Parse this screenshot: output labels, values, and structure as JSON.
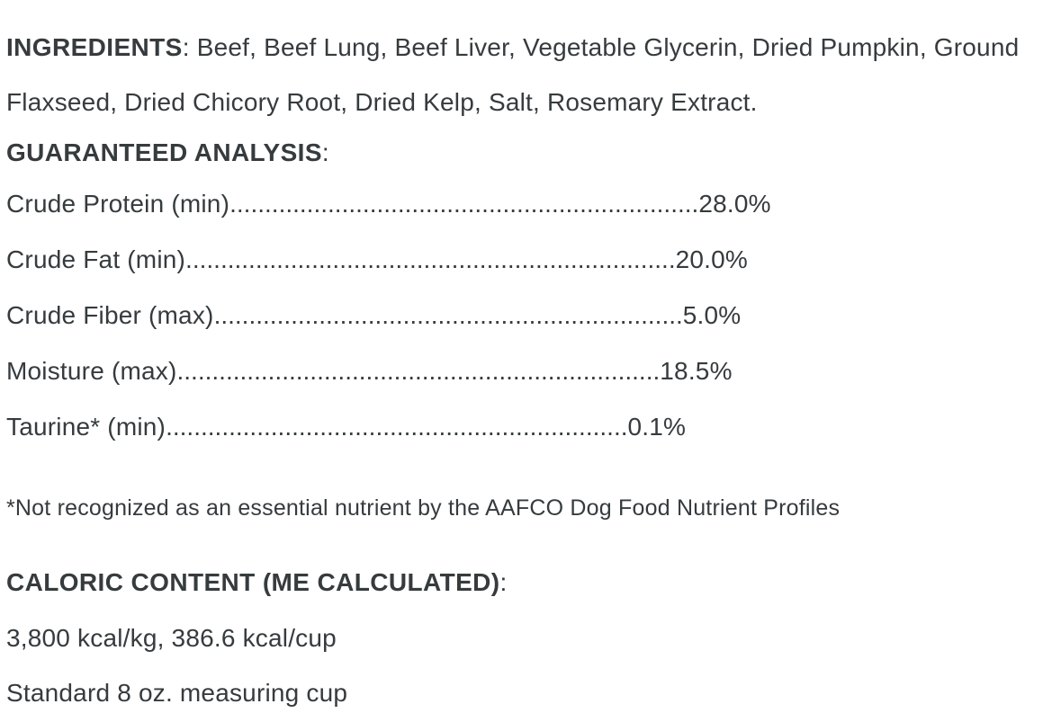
{
  "ingredients": {
    "heading": "INGREDIENTS",
    "colon": ": ",
    "body_line1": "Beef, Beef Lung, Beef Liver, Vegetable Glycerin, Dried Pumpkin, Ground",
    "body_line2": "Flaxseed, Dried Chicory Root, Dried Kelp, Salt, Rosemary Extract."
  },
  "guaranteed_analysis": {
    "heading": "GUARANTEED ANALYSIS",
    "colon": ":",
    "rows": [
      {
        "label": "Crude Protein (min)",
        "dots": "...................................................................",
        "value": "28.0%"
      },
      {
        "label": "Crude Fat (min)",
        "dots": "......................................................................",
        "value": "20.0%"
      },
      {
        "label": "Crude Fiber (max)",
        "dots": "...................................................................",
        "value": "5.0%"
      },
      {
        "label": "Moisture (max)",
        "dots": ".....................................................................",
        "value": "18.5%"
      },
      {
        "label": "Taurine* (min)",
        "dots": "..................................................................",
        "value": "0.1%"
      }
    ],
    "footnote": "*Not recognized as an essential nutrient by the AAFCO Dog Food Nutrient Profiles"
  },
  "caloric_content": {
    "heading": "CALORIC CONTENT (ME CALCULATED)",
    "colon": ":",
    "kcal_line": "3,800 kcal/kg, 386.6 kcal/cup",
    "cup_line": "Standard 8 oz. measuring cup"
  },
  "colors": {
    "text": "#363b3e",
    "background": "#ffffff"
  }
}
